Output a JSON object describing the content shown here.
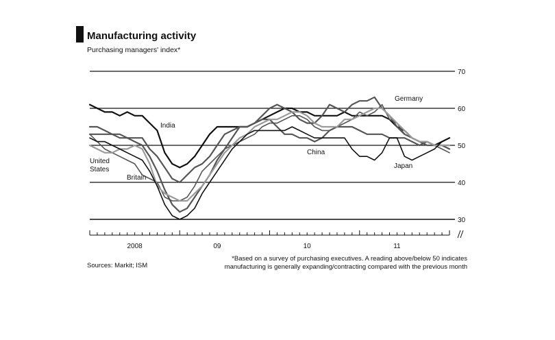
{
  "header": {
    "title": "Manufacturing activity",
    "subtitle": "Purchasing managers' index*"
  },
  "footer": {
    "source": "Sources: Markit; ISM",
    "footnote_line1": "*Based on a survey of purchasing executives. A reading above/below 50 indicates",
    "footnote_line2": "manufacturing is generally expanding/contracting compared with the previous month"
  },
  "chart_data": {
    "type": "line",
    "title": "Manufacturing activity",
    "subtitle": "Purchasing managers' index*",
    "ylim": [
      30,
      70
    ],
    "yticks": [
      30,
      40,
      50,
      60,
      70
    ],
    "year_labels": [
      {
        "label": "2008",
        "month": 6
      },
      {
        "label": "09",
        "month": 17
      },
      {
        "label": "10",
        "month": 29
      },
      {
        "label": "11",
        "month": 41
      }
    ],
    "months": 48,
    "grid": true,
    "colors": {
      "dark": "#111111",
      "mid": "#555555",
      "light": "#9a9a9a"
    },
    "series": [
      {
        "name": "India",
        "color": "#111111",
        "width": 2.2,
        "values": [
          61,
          60,
          59,
          59,
          58,
          59,
          58,
          58,
          56,
          54,
          48,
          45,
          44,
          45,
          47,
          50,
          53,
          55,
          55,
          55,
          55,
          55,
          56,
          57,
          58,
          59,
          60,
          60,
          59,
          59,
          58,
          58,
          58,
          58,
          59,
          58,
          58,
          58,
          58,
          58,
          57,
          55,
          54,
          52,
          51,
          51,
          50,
          51,
          52
        ]
      },
      {
        "name": "China",
        "color": "#555555",
        "width": 2.2,
        "values": [
          53,
          53,
          53,
          53,
          52,
          52,
          52,
          52,
          49,
          47,
          44,
          41,
          40,
          42,
          44,
          45,
          47,
          50,
          53,
          54,
          55,
          55,
          56,
          57,
          57,
          55,
          53,
          53,
          52,
          52,
          51,
          52,
          54,
          55,
          55,
          55,
          54,
          53,
          53,
          53,
          52,
          52,
          52,
          51,
          50,
          51,
          50,
          50,
          50
        ]
      },
      {
        "name": "Germany",
        "color": "#555555",
        "width": 2.2,
        "values": [
          55,
          55,
          54,
          53,
          53,
          52,
          51,
          50,
          47,
          43,
          38,
          34,
          32,
          33,
          36,
          39,
          42,
          46,
          49,
          52,
          55,
          55,
          56,
          58,
          60,
          61,
          60,
          59,
          57,
          56,
          56,
          58,
          61,
          60,
          59,
          61,
          62,
          62,
          63,
          60,
          58,
          55,
          53,
          52,
          51,
          50,
          50,
          50,
          49
        ]
      },
      {
        "name": "Britain",
        "color": "#555555",
        "width": 1.6,
        "values": [
          53,
          51,
          49,
          48,
          47,
          46,
          45,
          42,
          41,
          40,
          36,
          35,
          35,
          36,
          39,
          43,
          45,
          47,
          49,
          50,
          51,
          52,
          53,
          55,
          56,
          56,
          57,
          58,
          58,
          57,
          55,
          54,
          54,
          55,
          56,
          57,
          59,
          58,
          59,
          61,
          57,
          56,
          53,
          52,
          51,
          50,
          50,
          49,
          48
        ]
      },
      {
        "name": "United States",
        "color": "#9a9a9a",
        "width": 2.2,
        "values": [
          50,
          49,
          48,
          48,
          49,
          49,
          50,
          49,
          45,
          39,
          37,
          36,
          35,
          35,
          37,
          39,
          42,
          45,
          48,
          50,
          52,
          53,
          55,
          56,
          57,
          57,
          58,
          59,
          59,
          58,
          56,
          55,
          55,
          55,
          57,
          57,
          58,
          59,
          60,
          60,
          58,
          56,
          54,
          52,
          51,
          51,
          50,
          50,
          50
        ]
      },
      {
        "name": "Japan",
        "color": "#111111",
        "width": 1.6,
        "values": [
          52,
          51,
          51,
          50,
          49,
          48,
          47,
          46,
          43,
          39,
          34,
          31,
          30,
          31,
          33,
          37,
          40,
          43,
          46,
          49,
          51,
          53,
          54,
          54,
          54,
          54,
          54,
          55,
          54,
          53,
          52,
          52,
          52,
          52,
          52,
          49,
          47,
          47,
          46,
          48,
          52,
          52,
          47,
          46,
          47,
          48,
          49,
          51,
          52
        ]
      }
    ],
    "series_labels": [
      {
        "series": "India",
        "text": "India"
      },
      {
        "series": "China",
        "text": "China"
      },
      {
        "series": "Germany",
        "text": "Germany"
      },
      {
        "series": "Britain",
        "text": "Britain"
      },
      {
        "series": "United States",
        "text_line1": "United",
        "text_line2": "States"
      },
      {
        "series": "Japan",
        "text": "Japan"
      }
    ]
  }
}
